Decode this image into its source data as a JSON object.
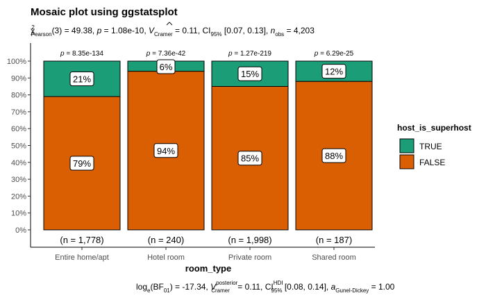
{
  "chart_data": {
    "type": "bar",
    "stacked": true,
    "title": "Mosaic plot using ggstatsplot",
    "subtitle": {
      "chi_symbol": "χ",
      "chi_sup": "2",
      "chi_sub": "Pearson",
      "chi_value": "(3) = 49.38, ",
      "p_symbol": "p",
      "p_value": " = 1.08e-10, ",
      "v_symbol": "V",
      "v_sub": "Cramer",
      "v_value": " = 0.11, CI",
      "ci_sub": "95%",
      "ci_value": " [0.07, 0.13], ",
      "n_symbol": "n",
      "n_sub": "obs",
      "n_value": " = 4,203"
    },
    "caption": {
      "log": "log",
      "log_sub": "e",
      "bf": "(BF",
      "bf_sub": "01",
      "bf_value": ") = -17.34, ",
      "v_symbol": "V",
      "v_sup": "posterior",
      "v_sub": "Cramer",
      "v_value": " = 0.11, CI",
      "ci_sup": "HDI",
      "ci_sub": "95%",
      "ci_value": " [0.08, 0.14], ",
      "a_symbol": "a",
      "a_sub": "Gunel-Dickey",
      "a_value": " = 1.00"
    },
    "xlabel": "room_type",
    "ylabel": "",
    "ylim": [
      0,
      100
    ],
    "yticks": [
      "0%",
      "10%",
      "20%",
      "30%",
      "40%",
      "50%",
      "60%",
      "70%",
      "80%",
      "90%",
      "100%"
    ],
    "categories": [
      "Entire home/apt",
      "Hotel room",
      "Private room",
      "Shared room"
    ],
    "series": [
      {
        "name": "FALSE",
        "color": "#D95F02",
        "values": [
          79,
          94,
          85,
          88
        ],
        "labels": [
          "79%",
          "94%",
          "85%",
          "88%"
        ]
      },
      {
        "name": "TRUE",
        "color": "#1B9E77",
        "values": [
          21,
          6,
          15,
          12
        ],
        "labels": [
          "21%",
          "6%",
          "15%",
          "12%"
        ]
      }
    ],
    "bar_pvalues": [
      "8.35e-134",
      "7.36e-42",
      "1.27e-219",
      "6.29e-25"
    ],
    "bar_n": [
      "(n = 1,778)",
      "(n = 240)",
      "(n = 1,998)",
      "(n = 187)"
    ],
    "legend": {
      "title": "host_is_superhost",
      "position": "right",
      "items": [
        {
          "label": "TRUE",
          "color": "#1B9E77"
        },
        {
          "label": "FALSE",
          "color": "#D95F02"
        }
      ]
    },
    "grid": false
  }
}
